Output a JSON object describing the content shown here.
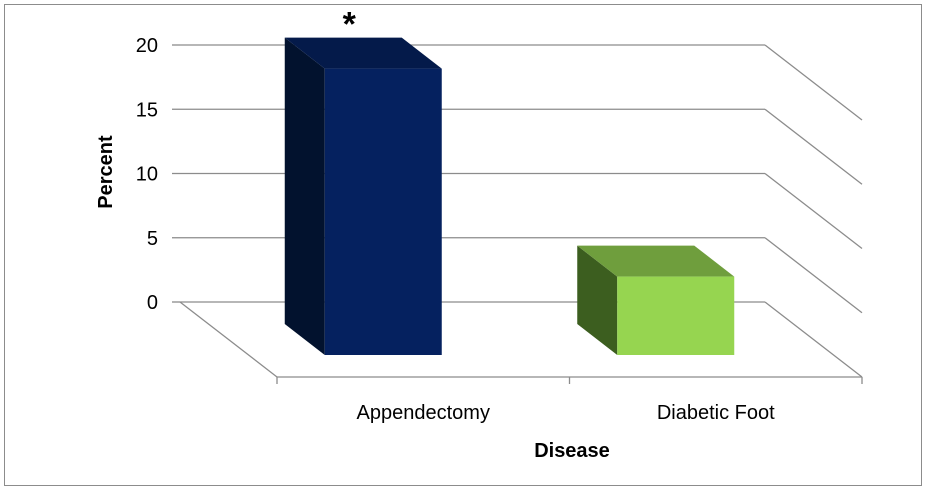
{
  "chart_data": {
    "type": "bar",
    "categories": [
      "Appendectomy",
      "Diabetic Foot"
    ],
    "values": [
      17.9,
      4.9
    ],
    "ylim": [
      0,
      20
    ],
    "yticks": [
      "0",
      "5",
      "10",
      "15",
      "20"
    ],
    "xlabel": "Disease",
    "ylabel": "Percent",
    "grid": true,
    "bar_colors": [
      {
        "front": "#05215f",
        "side": "#02122e",
        "top": "#041a4a"
      },
      {
        "front": "#96d550",
        "side": "#3c5e1f",
        "top": "#6f9e3d"
      }
    ],
    "annotations": [
      {
        "category": "Appendectomy",
        "text": "*"
      }
    ]
  }
}
